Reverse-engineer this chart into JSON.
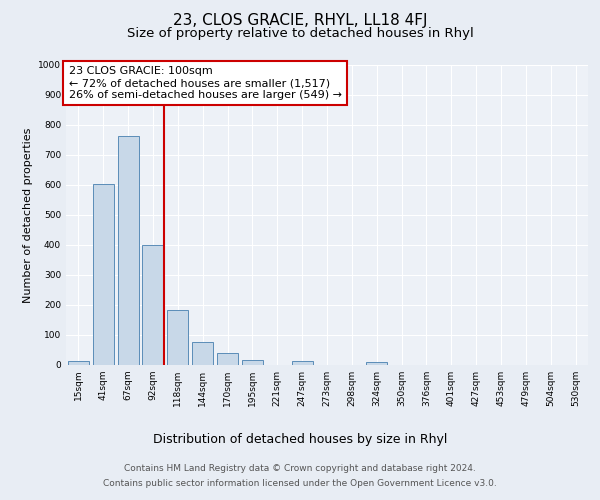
{
  "title": "23, CLOS GRACIE, RHYL, LL18 4FJ",
  "subtitle": "Size of property relative to detached houses in Rhyl",
  "xlabel": "Distribution of detached houses by size in Rhyl",
  "ylabel": "Number of detached properties",
  "categories": [
    "15sqm",
    "41sqm",
    "67sqm",
    "92sqm",
    "118sqm",
    "144sqm",
    "170sqm",
    "195sqm",
    "221sqm",
    "247sqm",
    "273sqm",
    "298sqm",
    "324sqm",
    "350sqm",
    "376sqm",
    "401sqm",
    "427sqm",
    "453sqm",
    "479sqm",
    "504sqm",
    "530sqm"
  ],
  "values": [
    15,
    605,
    765,
    400,
    185,
    78,
    40,
    18,
    0,
    15,
    0,
    0,
    10,
    0,
    0,
    0,
    0,
    0,
    0,
    0,
    0
  ],
  "bar_color": "#c8d8e8",
  "bar_edge_color": "#5b8db8",
  "vline_color": "#cc0000",
  "annotation_title": "23 CLOS GRACIE: 100sqm",
  "annotation_line1": "← 72% of detached houses are smaller (1,517)",
  "annotation_line2": "26% of semi-detached houses are larger (549) →",
  "annotation_box_color": "#cc0000",
  "ylim": [
    0,
    1000
  ],
  "yticks": [
    0,
    100,
    200,
    300,
    400,
    500,
    600,
    700,
    800,
    900,
    1000
  ],
  "bg_color": "#e8edf4",
  "plot_bg_color": "#edf1f7",
  "grid_color": "#ffffff",
  "footer_line1": "Contains HM Land Registry data © Crown copyright and database right 2024.",
  "footer_line2": "Contains public sector information licensed under the Open Government Licence v3.0.",
  "title_fontsize": 11,
  "subtitle_fontsize": 9.5,
  "xlabel_fontsize": 9,
  "ylabel_fontsize": 8,
  "tick_fontsize": 6.5,
  "annotation_fontsize": 8,
  "footer_fontsize": 6.5
}
